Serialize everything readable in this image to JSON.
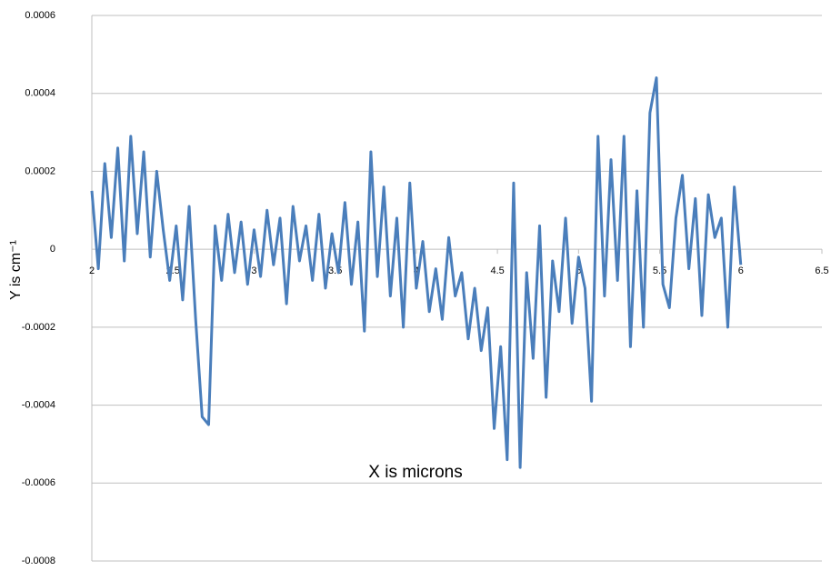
{
  "chart_data": {
    "type": "line",
    "xlabel": "X is microns",
    "ylabel": "Y is cm⁻¹",
    "xlim": [
      2,
      6.5
    ],
    "xticks": [
      2,
      2.5,
      3,
      3.5,
      4,
      4.5,
      5,
      5.5,
      6,
      6.5
    ],
    "ylim": [
      -0.0008,
      0.0006
    ],
    "yticks": [
      -0.0008,
      -0.0006,
      -0.0004,
      -0.0002,
      0,
      0.0002,
      0.0004,
      0.0006
    ],
    "grid": true,
    "x": [
      2.0,
      2.04,
      2.08,
      2.12,
      2.16,
      2.2,
      2.24,
      2.28,
      2.32,
      2.36,
      2.4,
      2.44,
      2.48,
      2.52,
      2.56,
      2.6,
      2.64,
      2.68,
      2.72,
      2.76,
      2.8,
      2.84,
      2.88,
      2.92,
      2.96,
      3.0,
      3.04,
      3.08,
      3.12,
      3.16,
      3.2,
      3.24,
      3.28,
      3.32,
      3.36,
      3.4,
      3.44,
      3.48,
      3.52,
      3.56,
      3.6,
      3.64,
      3.68,
      3.72,
      3.76,
      3.8,
      3.84,
      3.88,
      3.92,
      3.96,
      4.0,
      4.04,
      4.08,
      4.12,
      4.16,
      4.2,
      4.24,
      4.28,
      4.32,
      4.36,
      4.4,
      4.44,
      4.48,
      4.52,
      4.56,
      4.6,
      4.64,
      4.68,
      4.72,
      4.76,
      4.8,
      4.84,
      4.88,
      4.92,
      4.96,
      5.0,
      5.04,
      5.08,
      5.12,
      5.16,
      5.2,
      5.24,
      5.28,
      5.32,
      5.36,
      5.4,
      5.44,
      5.48,
      5.52,
      5.56,
      5.6,
      5.64,
      5.68,
      5.72,
      5.76,
      5.8,
      5.84,
      5.88,
      5.92,
      5.96,
      6.0
    ],
    "series": [
      {
        "color": "#4a7ebb",
        "values": [
          0.00015,
          -5e-05,
          0.00022,
          3e-05,
          0.00026,
          -3e-05,
          0.00029,
          4e-05,
          0.00025,
          -2e-05,
          0.0002,
          5e-05,
          -8e-05,
          6e-05,
          -0.00013,
          0.00011,
          -0.00018,
          -0.00043,
          -0.00045,
          6e-05,
          -8e-05,
          9e-05,
          -6e-05,
          7e-05,
          -9e-05,
          5e-05,
          -7e-05,
          0.0001,
          -4e-05,
          8e-05,
          -0.00014,
          0.00011,
          -3e-05,
          6e-05,
          -8e-05,
          9e-05,
          -0.0001,
          4e-05,
          -6e-05,
          0.00012,
          -9e-05,
          7e-05,
          -0.00021,
          0.00025,
          -7e-05,
          0.00016,
          -0.00012,
          8e-05,
          -0.0002,
          0.00017,
          -0.0001,
          2e-05,
          -0.00016,
          -5e-05,
          -0.00018,
          3e-05,
          -0.00012,
          -6e-05,
          -0.00023,
          -0.0001,
          -0.00026,
          -0.00015,
          -0.00046,
          -0.00025,
          -0.00054,
          0.00017,
          -0.00056,
          -6e-05,
          -0.00028,
          6e-05,
          -0.00038,
          -3e-05,
          -0.00016,
          8e-05,
          -0.00019,
          -2e-05,
          -0.0001,
          -0.00039,
          0.00029,
          -0.00012,
          0.00023,
          -8e-05,
          0.00029,
          -0.00025,
          0.00015,
          -0.0002,
          0.00035,
          0.00044,
          -9e-05,
          -0.00015,
          8e-05,
          0.00019,
          -5e-05,
          0.00013,
          -0.00017,
          0.00014,
          3e-05,
          8e-05,
          -0.0002,
          0.00016,
          -4e-05
        ]
      }
    ]
  }
}
